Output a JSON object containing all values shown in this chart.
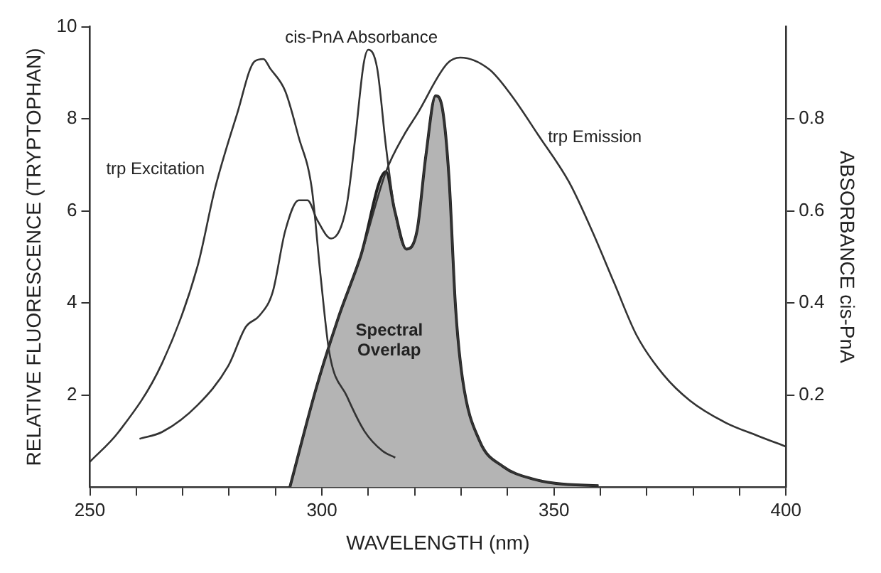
{
  "chart_data": {
    "type": "line",
    "xlabel": "WAVELENGTH (nm)",
    "ylabel": "RELATIVE FLUORESCENCE (TRYPTOPHAN)",
    "y2label": "ABSORBANCE cis-PnA",
    "xlim": [
      250,
      400
    ],
    "xticks": [
      250,
      {
        "value": 260,
        "label": null
      },
      {
        "value": 270,
        "label": null
      },
      {
        "value": 280,
        "label": null
      },
      {
        "value": 290,
        "label": null
      },
      300,
      {
        "value": 310,
        "label": null
      },
      {
        "value": 320,
        "label": null
      },
      {
        "value": 330,
        "label": null
      },
      {
        "value": 340,
        "label": null
      },
      350,
      {
        "value": 360,
        "label": null
      },
      {
        "value": 370,
        "label": null
      },
      {
        "value": 380,
        "label": null
      },
      {
        "value": 390,
        "label": null
      },
      400
    ],
    "ylim": [
      0,
      10
    ],
    "yticks": [
      2,
      4,
      6,
      8,
      10
    ],
    "y2lim": [
      0,
      1
    ],
    "y2ticks": [
      0.2,
      0.4,
      0.6,
      0.8
    ],
    "series": [
      {
        "name": "trp Excitation",
        "color": "#333333",
        "x": [
          250,
          256.2,
          265.6,
          273.2,
          277,
          281.7,
          285.5,
          287.4,
          288.8,
          292.1,
          295,
          297.8,
          299.7,
          301.6,
          305.4,
          309.2,
          313,
          315.8
        ],
        "values": [
          0.55,
          1.2,
          2.7,
          4.8,
          6.5,
          8.1,
          9.25,
          9.3,
          9.1,
          8.6,
          7.6,
          6.5,
          4.6,
          2.92,
          1.97,
          1.21,
          0.79,
          0.64
        ]
      },
      {
        "name": "cis-PnA Absorbance",
        "color": "#333333",
        "axis": "y2",
        "x": [
          260.7,
          265.6,
          273.2,
          279.8,
          283.6,
          286.5,
          289.4,
          292.1,
          295,
          296.9,
          299,
          302,
          305.3,
          307.2,
          309,
          310,
          311.9,
          313.8,
          315.7,
          318.2,
          320.5,
          322.4,
          324.5,
          326,
          327.4,
          328.8,
          330.3,
          334,
          339,
          345.7,
          350.5,
          359.6
        ],
        "values": [
          0.105,
          0.12,
          0.178,
          0.263,
          0.348,
          0.372,
          0.424,
          0.557,
          0.623,
          0.623,
          0.58,
          0.54,
          0.61,
          0.76,
          0.92,
          0.95,
          0.91,
          0.74,
          0.6,
          0.517,
          0.557,
          0.72,
          0.85,
          0.82,
          0.67,
          0.39,
          0.235,
          0.1,
          0.045,
          0.017,
          0.008,
          0.003
        ]
      },
      {
        "name": "trp Emission",
        "color": "#333333",
        "x": [
          293.1,
          298.8,
          303.5,
          308.3,
          313.8,
          317.7,
          320.5,
          327,
          329.8,
          336.1,
          340.9,
          346.6,
          353.4,
          358.2,
          363,
          367.8,
          373.6,
          379.3,
          387,
          393.8,
          400
        ],
        "values": [
          0,
          2.16,
          3.67,
          5.0,
          6.85,
          7.65,
          8.1,
          9.2,
          9.33,
          9.07,
          8.5,
          7.65,
          6.6,
          5.57,
          4.43,
          3.3,
          2.44,
          1.88,
          1.4,
          1.12,
          0.88
        ]
      },
      {
        "name": "Spectral Overlap",
        "type": "area",
        "color": "#b4b4b4",
        "x": [
          293.1,
          298.8,
          303.5,
          308.3,
          313.8,
          315.7,
          318.2,
          320.5,
          322.4,
          324.5,
          326,
          327.4,
          328.8,
          330.3,
          334,
          339,
          345.7,
          350.5,
          359.6
        ],
        "values": [
          0,
          2.16,
          3.67,
          5.0,
          6.85,
          6.0,
          5.17,
          5.57,
          7.2,
          8.5,
          8.2,
          6.7,
          3.9,
          2.35,
          1.0,
          0.45,
          0.17,
          0.08,
          0.03
        ]
      }
    ]
  }
}
